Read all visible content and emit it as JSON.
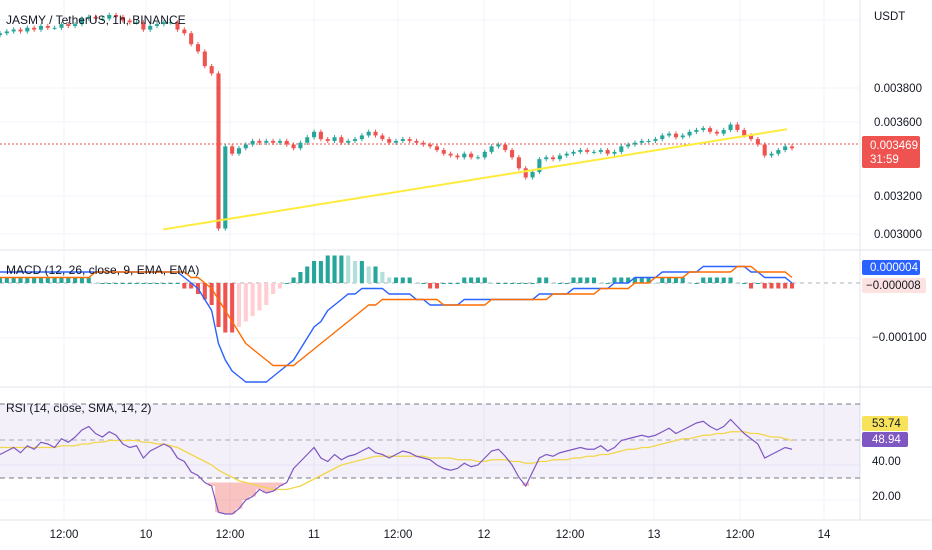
{
  "header": {
    "symbol_title": "JASMY / TetherUS, 1h, BINANCE",
    "currency": "USDT"
  },
  "price_axis": {
    "ticks": [
      "0.003800",
      "0.003600",
      "0.003200",
      "0.003000"
    ],
    "current_price": "0.003469",
    "countdown": "31:59"
  },
  "macd": {
    "title": "MACD (12, 26, close, 9, EMA, EMA)",
    "ticks": [
      "−0.000100"
    ],
    "value_macd": "0.000004",
    "value_hist": "−0.000008"
  },
  "rsi": {
    "title": "RSI (14, close, SMA, 14, 2)",
    "ticks": [
      "40.00",
      "20.00"
    ],
    "value_ma": "53.74",
    "value_rsi": "48.94"
  },
  "time_axis": {
    "labels": [
      "12:00",
      "10",
      "12:00",
      "11",
      "12:00",
      "12",
      "12:00",
      "13",
      "12:00",
      "14"
    ]
  },
  "colors": {
    "up": "#26a69a",
    "down": "#ef5350",
    "trendline": "#ffeb3b",
    "macd_line": "#2962ff",
    "signal_line": "#ff6d00",
    "rsi_line": "#7e57c2",
    "rsi_ma": "#f2d64b"
  },
  "chart_data": {
    "type": "candlestick",
    "price_range": [
      0.00298,
      0.00424
    ],
    "close_series": [
      0.0041,
      0.00411,
      0.00412,
      0.00411,
      0.00413,
      0.00412,
      0.00414,
      0.00413,
      0.00413,
      0.00415,
      0.00414,
      0.00415,
      0.00418,
      0.00419,
      0.00418,
      0.00418,
      0.0042,
      0.00419,
      0.00417,
      0.00416,
      0.00416,
      0.00412,
      0.00414,
      0.00415,
      0.00416,
      0.00416,
      0.00412,
      0.0041,
      0.00404,
      0.004,
      0.00392,
      0.00388,
      0.00303,
      0.00348,
      0.00344,
      0.00347,
      0.00349,
      0.00351,
      0.0035,
      0.00351,
      0.0035,
      0.00351,
      0.00349,
      0.00347,
      0.0035,
      0.00353,
      0.00356,
      0.00352,
      0.00351,
      0.00353,
      0.0035,
      0.00351,
      0.00352,
      0.00354,
      0.00356,
      0.00354,
      0.00352,
      0.0035,
      0.00351,
      0.00352,
      0.00351,
      0.0035,
      0.00349,
      0.00348,
      0.00346,
      0.00344,
      0.00343,
      0.00342,
      0.00344,
      0.00342,
      0.00342,
      0.00345,
      0.00348,
      0.00349,
      0.00346,
      0.00342,
      0.00336,
      0.00331,
      0.00334,
      0.00341,
      0.00342,
      0.00341,
      0.00343,
      0.00344,
      0.00345,
      0.00346,
      0.00345,
      0.00345,
      0.00346,
      0.00344,
      0.00345,
      0.00348,
      0.00349,
      0.0035,
      0.00351,
      0.00351,
      0.00352,
      0.00354,
      0.00355,
      0.00353,
      0.00354,
      0.00356,
      0.00357,
      0.00358,
      0.00356,
      0.00355,
      0.00357,
      0.0036,
      0.00357,
      0.00354,
      0.00352,
      0.00349,
      0.00343,
      0.00344,
      0.00346,
      0.00348,
      0.00347
    ],
    "trendline": [
      [
        0.1898,
        0.003025
      ],
      [
        0.9151,
        0.003574
      ]
    ],
    "macd_line": [
      2e-05,
      2e-05,
      2e-05,
      2e-05,
      2e-05,
      2e-05,
      2e-05,
      2e-05,
      2e-05,
      2e-05,
      2e-05,
      2e-05,
      2e-05,
      2e-05,
      2e-05,
      2e-05,
      2e-05,
      2e-05,
      2e-05,
      2e-05,
      2e-05,
      2e-05,
      2e-05,
      2e-05,
      2e-05,
      2e-05,
      2e-05,
      1e-05,
      0.0,
      -1e-05,
      -3e-05,
      -5e-05,
      -0.00011,
      -0.00014,
      -0.00016,
      -0.00017,
      -0.00018,
      -0.00018,
      -0.00018,
      -0.00018,
      -0.00017,
      -0.00016,
      -0.00015,
      -0.00014,
      -0.00012,
      -0.0001,
      -8e-05,
      -7e-05,
      -5e-05,
      -4e-05,
      -3e-05,
      -2e-05,
      -2e-05,
      -1e-05,
      -1e-05,
      -1e-05,
      -1e-05,
      -2e-05,
      -2e-05,
      -2e-05,
      -2e-05,
      -3e-05,
      -3e-05,
      -4e-05,
      -4e-05,
      -4e-05,
      -4e-05,
      -4e-05,
      -3e-05,
      -3e-05,
      -3e-05,
      -3e-05,
      -3e-05,
      -3e-05,
      -3e-05,
      -3e-05,
      -3e-05,
      -3e-05,
      -3e-05,
      -2e-05,
      -2e-05,
      -2e-05,
      -2e-05,
      -2e-05,
      -1e-05,
      -1e-05,
      -1e-05,
      -1e-05,
      -1e-05,
      -1e-05,
      0.0,
      0.0,
      0.0,
      1e-05,
      1e-05,
      1e-05,
      1e-05,
      2e-05,
      2e-05,
      2e-05,
      2e-05,
      2e-05,
      2e-05,
      3e-05,
      3e-05,
      3e-05,
      3e-05,
      3e-05,
      3e-05,
      3e-05,
      2e-05,
      2e-05,
      1e-05,
      1e-05,
      1e-05,
      1e-05,
      0.0
    ],
    "signal_line": [
      1e-05,
      1e-05,
      1e-05,
      1e-05,
      1e-05,
      1e-05,
      1e-05,
      1e-05,
      1e-05,
      1e-05,
      1e-05,
      1e-05,
      1e-05,
      1e-05,
      2e-05,
      2e-05,
      2e-05,
      2e-05,
      2e-05,
      2e-05,
      2e-05,
      2e-05,
      2e-05,
      2e-05,
      2e-05,
      2e-05,
      2e-05,
      2e-05,
      1e-05,
      1e-05,
      0.0,
      -1e-05,
      -3e-05,
      -5e-05,
      -7e-05,
      -9e-05,
      -0.00011,
      -0.00012,
      -0.00013,
      -0.00014,
      -0.00015,
      -0.00015,
      -0.00015,
      -0.00015,
      -0.00014,
      -0.00013,
      -0.00012,
      -0.00011,
      -0.0001,
      -9e-05,
      -8e-05,
      -7e-05,
      -6e-05,
      -5e-05,
      -4e-05,
      -4e-05,
      -3e-05,
      -3e-05,
      -3e-05,
      -3e-05,
      -3e-05,
      -3e-05,
      -3e-05,
      -3e-05,
      -3e-05,
      -4e-05,
      -4e-05,
      -4e-05,
      -4e-05,
      -4e-05,
      -4e-05,
      -4e-05,
      -3e-05,
      -3e-05,
      -3e-05,
      -3e-05,
      -3e-05,
      -3e-05,
      -3e-05,
      -3e-05,
      -3e-05,
      -2e-05,
      -2e-05,
      -2e-05,
      -2e-05,
      -2e-05,
      -2e-05,
      -2e-05,
      -1e-05,
      -1e-05,
      -1e-05,
      -1e-05,
      -1e-05,
      0.0,
      0.0,
      0.0,
      1e-05,
      1e-05,
      1e-05,
      1e-05,
      1e-05,
      2e-05,
      2e-05,
      2e-05,
      2e-05,
      2e-05,
      2e-05,
      2e-05,
      3e-05,
      3e-05,
      3e-05,
      2e-05,
      2e-05,
      2e-05,
      2e-05,
      2e-05,
      1e-05
    ],
    "rsi_line": [
      46,
      48,
      50,
      47,
      51,
      49,
      53,
      52,
      50,
      55,
      53,
      56,
      60,
      62,
      58,
      56,
      59,
      57,
      52,
      50,
      51,
      44,
      48,
      50,
      52,
      50,
      44,
      42,
      36,
      34,
      30,
      28,
      13,
      12,
      12,
      15,
      20,
      22,
      26,
      24,
      25,
      28,
      30,
      38,
      42,
      46,
      50,
      44,
      42,
      46,
      43,
      45,
      46,
      48,
      50,
      47,
      46,
      44,
      46,
      48,
      47,
      45,
      44,
      43,
      40,
      38,
      37,
      38,
      41,
      39,
      40,
      44,
      48,
      49,
      45,
      40,
      33,
      28,
      36,
      44,
      46,
      45,
      47,
      48,
      49,
      50,
      49,
      49,
      51,
      48,
      50,
      54,
      55,
      56,
      57,
      56,
      57,
      59,
      61,
      58,
      60,
      62,
      64,
      65,
      62,
      60,
      62,
      66,
      62,
      58,
      55,
      52,
      44,
      46,
      48,
      50,
      49
    ],
    "rsi_ma": [
      50,
      50,
      50,
      50,
      50,
      50,
      50,
      50,
      50,
      51,
      51,
      51,
      52,
      52,
      53,
      53,
      54,
      54,
      54,
      54,
      54,
      53,
      53,
      52,
      52,
      51,
      50,
      48,
      46,
      44,
      42,
      40,
      37,
      35,
      33,
      31,
      30,
      29,
      28,
      27,
      26,
      26,
      26,
      27,
      28,
      30,
      32,
      34,
      36,
      38,
      40,
      41,
      42,
      43,
      44,
      45,
      45,
      45,
      45,
      45,
      45,
      45,
      45,
      44,
      44,
      44,
      44,
      43,
      43,
      43,
      42,
      42,
      43,
      43,
      43,
      42,
      42,
      41,
      41,
      42,
      42,
      43,
      43,
      43,
      44,
      44,
      45,
      45,
      46,
      46,
      47,
      48,
      49,
      49,
      50,
      50,
      51,
      52,
      53,
      54,
      55,
      55,
      56,
      57,
      57,
      58,
      58,
      59,
      59,
      59,
      58,
      58,
      57,
      56,
      56,
      55,
      54
    ]
  }
}
